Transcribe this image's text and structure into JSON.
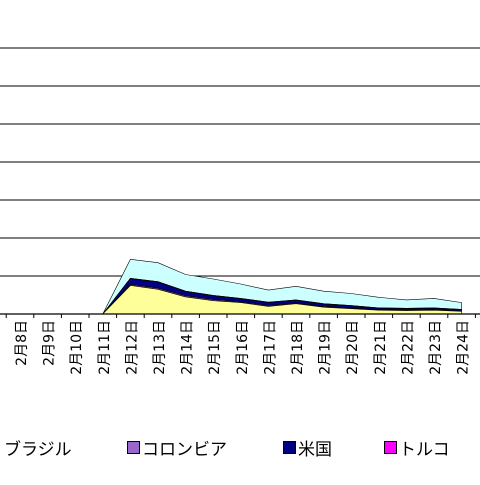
{
  "chart_data": {
    "type": "area",
    "stacked": true,
    "categories": [
      "2月8日",
      "2月9日",
      "2月10日",
      "2月11日",
      "2月12日",
      "2月13日",
      "2月14日",
      "2月15日",
      "2月16日",
      "2月17日",
      "2月18日",
      "2月19日",
      "2月20日",
      "2月21日",
      "2月22日",
      "2月23日",
      "2月24日"
    ],
    "series": [
      {
        "name": "ブラジル",
        "color": "#ffff99",
        "values": [
          0,
          0,
          0,
          0,
          7.5,
          6.5,
          4.5,
          3.5,
          3.0,
          2.0,
          2.7,
          1.8,
          1.4,
          1.0,
          0.9,
          1.0,
          0.7
        ]
      },
      {
        "name": "コロンビア",
        "color": "#9966cc",
        "values": [
          0,
          0,
          0,
          0,
          0.3,
          0.3,
          0.3,
          0.3,
          0.2,
          0.2,
          0.2,
          0.2,
          0.2,
          0.1,
          0.1,
          0.1,
          0.1
        ]
      },
      {
        "name": "米国",
        "color": "#000080",
        "values": [
          0,
          0,
          0,
          0,
          1.5,
          1.6,
          1.1,
          1.0,
          0.8,
          0.8,
          0.7,
          0.6,
          0.5,
          0.4,
          0.4,
          0.4,
          0.3
        ]
      },
      {
        "name": "トルコ",
        "color": "#ff00ff",
        "values": [
          0,
          0,
          0,
          0,
          0.1,
          0.1,
          0.1,
          0.1,
          0.1,
          0.1,
          0.1,
          0.1,
          0.1,
          0.1,
          0.1,
          0.1,
          0.1
        ]
      },
      {
        "name": "",
        "color": "#ccffff",
        "values": [
          0,
          0,
          0,
          0,
          5.0,
          5.0,
          4.4,
          4.3,
          3.8,
          3.2,
          3.6,
          3.3,
          3.2,
          2.8,
          2.2,
          2.5,
          1.8
        ]
      }
    ],
    "ylim": [
      0,
      70
    ],
    "grid": true
  },
  "legend": [
    {
      "label": "ブラジル",
      "color": null
    },
    {
      "label": "コロンビア",
      "color": "#9966cc"
    },
    {
      "label": "米国",
      "color": "#000080"
    },
    {
      "label": "トルコ",
      "color": "#ff00ff"
    }
  ]
}
